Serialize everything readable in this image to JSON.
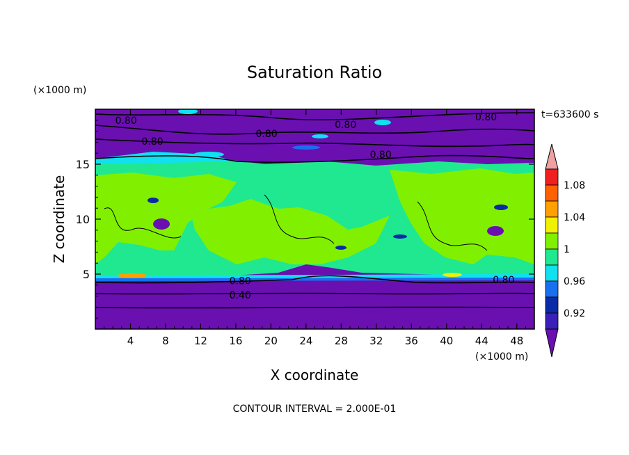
{
  "chart_data": {
    "type": "heatmap",
    "title": "Saturation Ratio",
    "xlabel": "X coordinate",
    "ylabel": "Z coordinate",
    "x_unit_label": "(×1000 m)",
    "y_unit_label": "(×1000 m)",
    "time_label": "t=633600 s",
    "footer": "CONTOUR INTERVAL = 2.000E-01",
    "xlim": [
      0,
      50
    ],
    "ylim": [
      0,
      20
    ],
    "x_ticks": [
      4,
      8,
      12,
      16,
      20,
      24,
      28,
      32,
      36,
      40,
      44,
      48
    ],
    "y_ticks": [
      5,
      10,
      15
    ],
    "colorbar": {
      "levels": [
        0.92,
        0.94,
        0.96,
        0.98,
        1.0,
        1.02,
        1.04,
        1.06,
        1.08
      ],
      "tick_labels": [
        "0.92",
        "0.96",
        "1",
        "1.04",
        "1.08"
      ],
      "colors": [
        "#6a0fb0",
        "#3a1fb8",
        "#0a2aa8",
        "#1a6ff0",
        "#10e0f0",
        "#20e890",
        "#80f000",
        "#f0f000",
        "#ffa000",
        "#ff6000",
        "#f02020",
        "#f0a0a0"
      ],
      "extend": "both"
    },
    "regions": [
      {
        "value": 0.9,
        "z_range": [
          0,
          4.8
        ],
        "description_color": "#6a0fb0"
      },
      {
        "value": 0.99,
        "z_range": [
          4.8,
          15
        ],
        "description_color": "#20e890"
      },
      {
        "value": 1.01,
        "z_range": [
          5,
          14
        ],
        "description_color": "#80f000"
      },
      {
        "value": 0.9,
        "z_range": [
          15,
          20
        ],
        "description_color": "#6a0fb0"
      }
    ],
    "contour_labels": [
      {
        "text": "0.80",
        "x": 3.5,
        "z": 19.0
      },
      {
        "text": "0.80",
        "x": 19.5,
        "z": 17.8
      },
      {
        "text": "0.80",
        "x": 28.5,
        "z": 18.6
      },
      {
        "text": "0.80",
        "x": 44.5,
        "z": 19.3
      },
      {
        "text": "0.80",
        "x": 6.5,
        "z": 17.1
      },
      {
        "text": "0.80",
        "x": 32.5,
        "z": 15.9
      },
      {
        "text": "0.80",
        "x": 16.5,
        "z": 4.4
      },
      {
        "text": "0.40",
        "x": 16.5,
        "z": 3.1
      },
      {
        "text": "0.80",
        "x": 46.5,
        "z": 4.5
      }
    ]
  }
}
